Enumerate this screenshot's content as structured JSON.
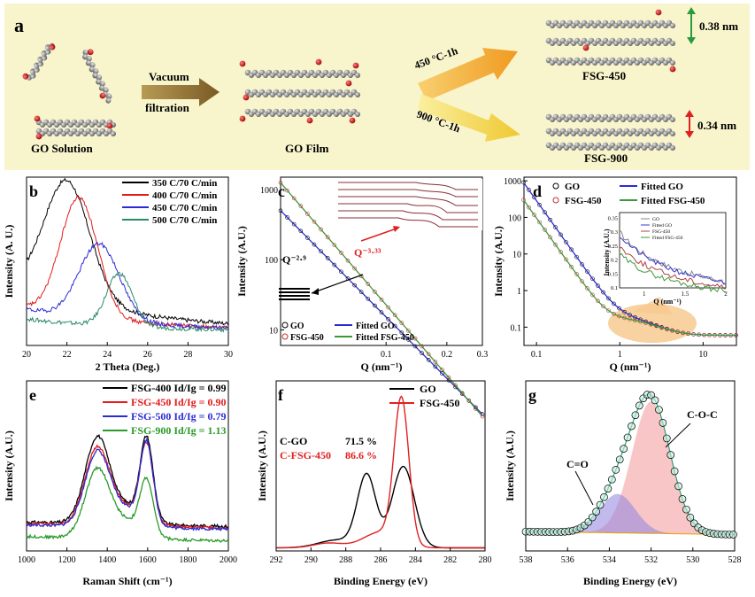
{
  "panel_a": {
    "letter": "a",
    "go_solution": "GO Solution",
    "vacuum": "Vacuum",
    "filtration": "filtration",
    "go_film": "GO Film",
    "t450": "450 °C-1h",
    "t900": "900 °C-1h",
    "fsg450": "FSG-450",
    "fsg900": "FSG-900",
    "d450": "0.38 nm",
    "d900": "0.34 nm",
    "colors": {
      "bg": "#f8f5cc",
      "arrow_top": "#f0a030",
      "arrow_bottom": "#f5d040",
      "green": "#2a9a40",
      "red": "#e02020"
    }
  },
  "chart_data": [
    {
      "panel": "b",
      "type": "line",
      "xlabel": "2 Theta (Deg.)",
      "ylabel": "Intensity (A. U.)",
      "xlim": [
        20,
        30
      ],
      "xticks": [
        "20",
        "22",
        "24",
        "26",
        "28",
        "30"
      ],
      "series": [
        {
          "name": "350 C/70 C/min",
          "color": "#000000",
          "peak": 22.0,
          "height": 0.72,
          "width": 1.6,
          "base": 0.28
        },
        {
          "name": "400 C/70 C/min",
          "color": "#e41a1c",
          "peak": 22.6,
          "height": 0.72,
          "width": 1.3,
          "base": 0.15
        },
        {
          "name": "450 C/70 C/min",
          "color": "#2b2bd6",
          "peak": 23.6,
          "height": 0.46,
          "width": 1.4,
          "base": 0.14
        },
        {
          "name": "500 C/70 C/min",
          "color": "#2a8a6a",
          "peak": 24.6,
          "height": 0.32,
          "width": 0.9,
          "base": 0.08
        }
      ]
    },
    {
      "panel": "c",
      "type": "line",
      "xlabel": "Q (nm⁻¹)",
      "ylabel": "Intensity (A.U.)",
      "xticks": [
        "0.1",
        "0.2",
        "0.3"
      ],
      "yticks": [
        "10",
        "100",
        "1000"
      ],
      "xlim": [
        0.03,
        0.3
      ],
      "ylim": [
        6,
        1500
      ],
      "annotations": [
        "Q⁻²·⁹",
        "Q⁻³·³³"
      ],
      "series": [
        {
          "name": "GO",
          "color": "#000000",
          "marker": "circle-open"
        },
        {
          "name": "FSG-450",
          "color": "#c03030",
          "marker": "circle-open"
        },
        {
          "name": "Fitted GO",
          "color": "#2b2bd6",
          "exponent": -2.9,
          "y0": 500
        },
        {
          "name": "Fitted FSG-450",
          "color": "#3a9a3a",
          "exponent": -3.33,
          "y0": 1250
        }
      ]
    },
    {
      "panel": "d",
      "type": "scatter",
      "xlabel": "Q (nm⁻¹)",
      "ylabel": "Intensity (A.U.)",
      "xticks": [
        "0.1",
        "1",
        "10"
      ],
      "yticks": [
        "0.1",
        "1",
        "10",
        "100",
        "1000"
      ],
      "legend": [
        "GO",
        "FSG-450",
        "Fitted GO",
        "Fitted FSG-450"
      ],
      "inset": {
        "xlabel": "Q (nm⁻¹)",
        "ylabel": "Intensity (A.U.)",
        "xticks": [
          "1",
          "1.5",
          "2"
        ],
        "yticks": [
          "0.1",
          "0.15",
          "0.2",
          "0.25",
          "0.3",
          "0.35"
        ],
        "legend": [
          "GO",
          "Fitted GO",
          "FSG-450",
          "Fitted FSG-450"
        ]
      }
    },
    {
      "panel": "e",
      "type": "line",
      "xlabel": "Raman Shift (cm⁻¹)",
      "ylabel": "Intensity (A.U.)",
      "xlim": [
        1000,
        2000
      ],
      "xticks": [
        "1000",
        "1200",
        "1400",
        "1600",
        "1800",
        "2000"
      ],
      "series": [
        {
          "name": "FSG-400 Id/Ig = 0.99",
          "color": "#000000",
          "d": 0.58,
          "g": 0.55,
          "base": 0.2
        },
        {
          "name": "FSG-450 Id/Ig = 0.90",
          "color": "#e41a1c",
          "d": 0.52,
          "g": 0.52,
          "base": 0.19
        },
        {
          "name": "FSG-500 Id/Ig = 0.79",
          "color": "#2b2bd6",
          "d": 0.5,
          "g": 0.54,
          "base": 0.18
        },
        {
          "name": "FSG-900 Id/Ig = 1.13",
          "color": "#2a9a2a",
          "d": 0.46,
          "g": 0.36,
          "base": 0.1
        }
      ]
    },
    {
      "panel": "f",
      "type": "line",
      "xlabel": "Binding Energy (eV)",
      "ylabel": "Intensity (A.U.)",
      "xlim": [
        292,
        280
      ],
      "xticks": [
        "292",
        "290",
        "288",
        "286",
        "284",
        "282",
        "280"
      ],
      "labels": [
        {
          "name": "C-GO",
          "value": "71.5 %"
        },
        {
          "name": "C-FSG-450",
          "value": "86.6 %"
        }
      ],
      "series": [
        {
          "name": "GO",
          "color": "#000000"
        },
        {
          "name": "FSG-450",
          "color": "#e02020"
        }
      ]
    },
    {
      "panel": "g",
      "type": "area",
      "xlabel": "Binding Energy (eV)",
      "ylabel": "Intensity (A.U.)",
      "xlim": [
        538,
        528
      ],
      "xticks": [
        "538",
        "536",
        "534",
        "532",
        "530",
        "528"
      ],
      "annotations": [
        "C=O",
        "C-O-C"
      ],
      "components": [
        {
          "name": "C=O",
          "center": 533.6,
          "color": "#9a8ae0"
        },
        {
          "name": "C-O-C",
          "center": 532.0,
          "color": "#f4a0a0"
        }
      ]
    }
  ],
  "labels": {
    "b": "b",
    "c": "c",
    "d": "d",
    "e": "e",
    "f": "f",
    "g": "g"
  }
}
